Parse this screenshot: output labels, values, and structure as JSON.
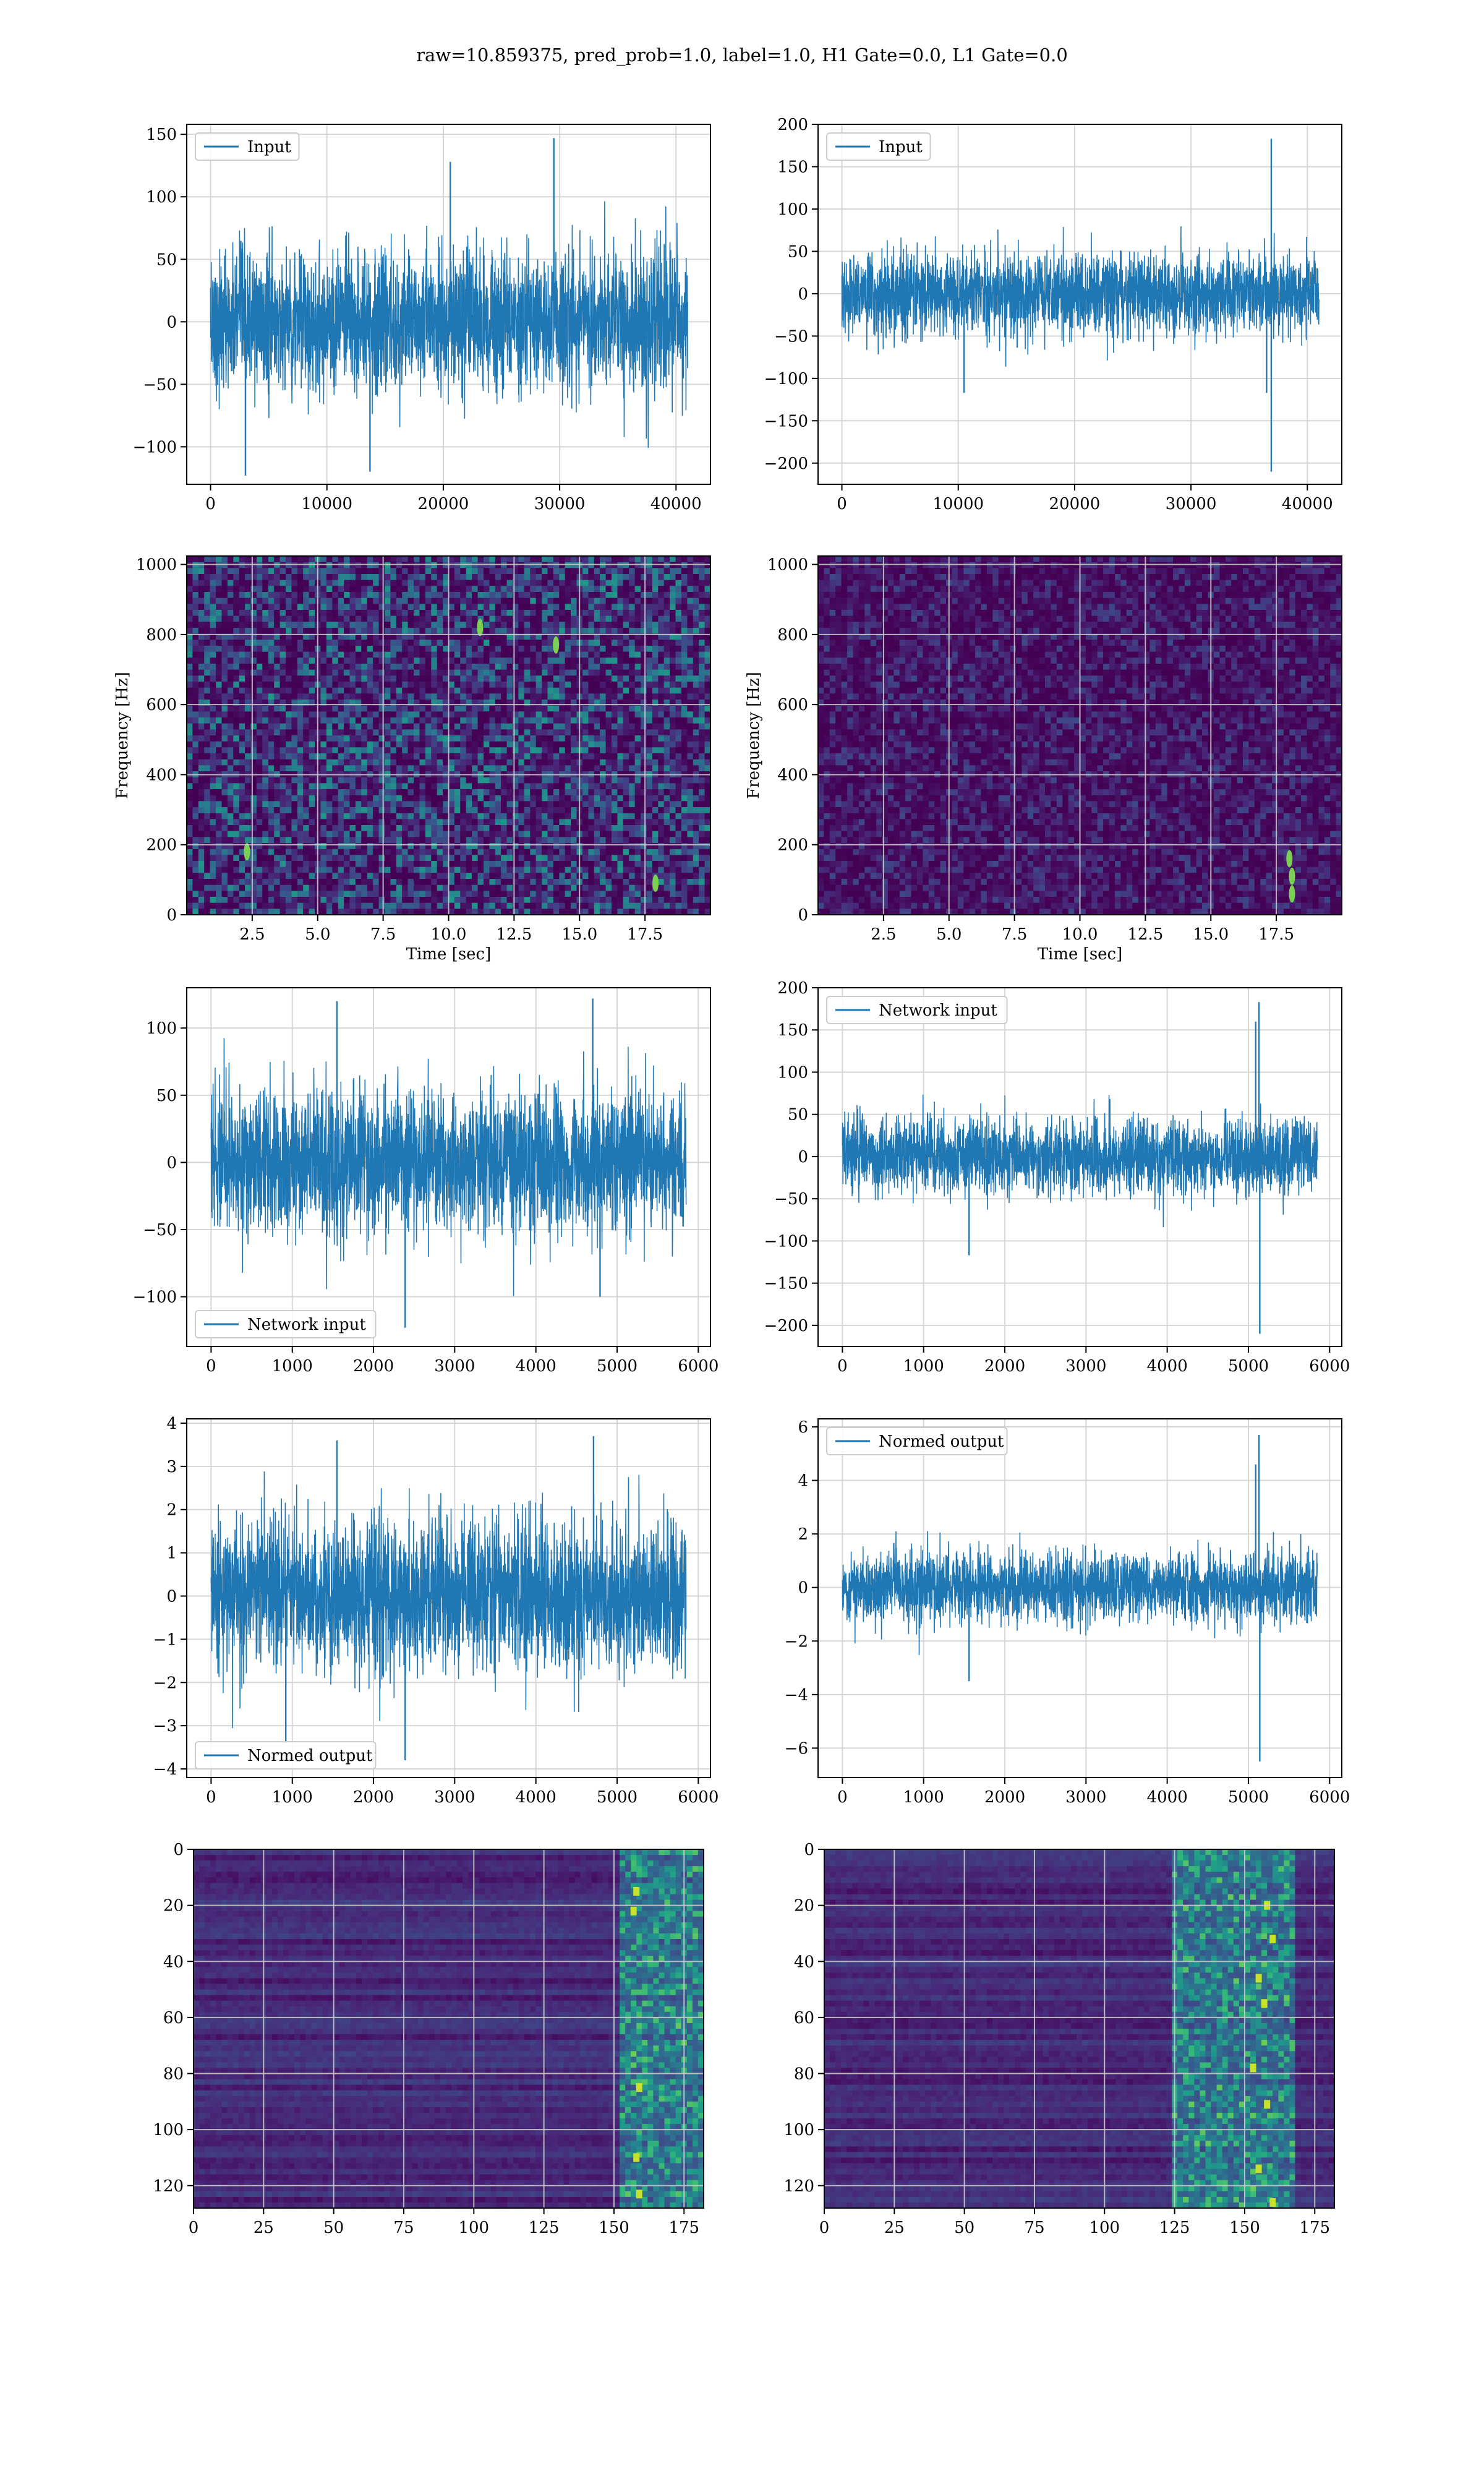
{
  "figure": {
    "title": "raw=10.859375, pred_prob=1.0, label=1.0, H1 Gate=0.0, L1 Gate=0.0"
  },
  "colors": {
    "line": "#1f77b4",
    "grid": "#d0d0d0",
    "axis": "#000000",
    "viridis_low": "#440154",
    "viridis_high": "#fde725"
  },
  "chart_data": [
    {
      "id": "h1-input",
      "type": "line",
      "legend": "Input",
      "legend_loc": "upper-left",
      "xlim": [
        -2048,
        42960
      ],
      "ylim": [
        -130,
        158
      ],
      "xticks": [
        0,
        10000,
        20000,
        30000,
        40000
      ],
      "xtick_labels": [
        "0",
        "10000",
        "20000",
        "30000",
        "40000"
      ],
      "yticks": [
        -100,
        -50,
        0,
        50,
        100,
        150
      ],
      "ytick_labels": [
        "−100",
        "−50",
        "0",
        "50",
        "100",
        "150"
      ],
      "xlabel": "",
      "ylabel": "",
      "series": [
        {
          "x": [
            0,
            41000
          ],
          "noise_sd": 28,
          "peak_max": 147,
          "peak_min": -123,
          "spikes": [
            [
              29500,
              147
            ],
            [
              3000,
              -123
            ],
            [
              13700,
              -120
            ],
            [
              20600,
              128
            ]
          ]
        }
      ]
    },
    {
      "id": "l1-input",
      "type": "line",
      "legend": "Input",
      "legend_loc": "upper-left",
      "xlim": [
        -2048,
        42960
      ],
      "ylim": [
        -225,
        200
      ],
      "xticks": [
        0,
        10000,
        20000,
        30000,
        40000
      ],
      "xtick_labels": [
        "0",
        "10000",
        "20000",
        "30000",
        "40000"
      ],
      "yticks": [
        -200,
        -150,
        -100,
        -50,
        0,
        50,
        100,
        150,
        200
      ],
      "ytick_labels": [
        "−200",
        "−150",
        "−100",
        "−50",
        "0",
        "50",
        "100",
        "150",
        "200"
      ],
      "xlabel": "",
      "ylabel": "",
      "series": [
        {
          "x": [
            0,
            41000
          ],
          "noise_sd": 24,
          "peak_max": 183,
          "peak_min": -210,
          "spikes": [
            [
              36900,
              183
            ],
            [
              36900,
              -210
            ],
            [
              36500,
              -117
            ],
            [
              10500,
              -117
            ]
          ]
        }
      ]
    },
    {
      "id": "h1-spectrogram",
      "type": "heatmap",
      "xlim": [
        0,
        20
      ],
      "ylim": [
        0,
        1024
      ],
      "xticks": [
        2.5,
        5.0,
        7.5,
        10.0,
        12.5,
        15.0,
        17.5
      ],
      "xtick_labels": [
        "2.5",
        "5.0",
        "7.5",
        "10.0",
        "12.5",
        "15.0",
        "17.5"
      ],
      "yticks": [
        0,
        200,
        400,
        600,
        800,
        1000
      ],
      "ytick_labels": [
        "0",
        "200",
        "400",
        "600",
        "800",
        "1000"
      ],
      "xlabel": "Time [sec]",
      "ylabel": "Frequency [Hz]",
      "brightness": 0.24,
      "hot_spots": [
        [
          17.9,
          90
        ],
        [
          2.3,
          180
        ],
        [
          11.2,
          820
        ],
        [
          14.1,
          770
        ]
      ]
    },
    {
      "id": "l1-spectrogram",
      "type": "heatmap",
      "xlim": [
        0,
        20
      ],
      "ylim": [
        0,
        1024
      ],
      "xticks": [
        2.5,
        5.0,
        7.5,
        10.0,
        12.5,
        15.0,
        17.5
      ],
      "xtick_labels": [
        "2.5",
        "5.0",
        "7.5",
        "10.0",
        "12.5",
        "15.0",
        "17.5"
      ],
      "yticks": [
        0,
        200,
        400,
        600,
        800,
        1000
      ],
      "ytick_labels": [
        "0",
        "200",
        "400",
        "600",
        "800",
        "1000"
      ],
      "xlabel": "Time [sec]",
      "ylabel": "Frequency [Hz]",
      "brightness": 0.1,
      "hot_spots": [
        [
          18.1,
          60
        ],
        [
          18.1,
          110
        ],
        [
          18.0,
          160
        ]
      ]
    },
    {
      "id": "h1-network-input",
      "type": "line",
      "legend": "Network input",
      "legend_loc": "lower-left",
      "xlim": [
        -300,
        6150
      ],
      "ylim": [
        -137,
        130
      ],
      "xticks": [
        0,
        1000,
        2000,
        3000,
        4000,
        5000,
        6000
      ],
      "xtick_labels": [
        "0",
        "1000",
        "2000",
        "3000",
        "4000",
        "5000",
        "6000"
      ],
      "yticks": [
        -100,
        -50,
        0,
        50,
        100
      ],
      "ytick_labels": [
        "−100",
        "−50",
        "0",
        "50",
        "100"
      ],
      "xlabel": "",
      "ylabel": "",
      "series": [
        {
          "x": [
            0,
            5850
          ],
          "noise_sd": 26,
          "peak_max": 122,
          "peak_min": -123,
          "spikes": [
            [
              1550,
              120
            ],
            [
              4700,
              122
            ],
            [
              2390,
              -123
            ],
            [
              4790,
              -100
            ]
          ]
        }
      ]
    },
    {
      "id": "l1-network-input",
      "type": "line",
      "legend": "Network input",
      "legend_loc": "upper-left",
      "xlim": [
        -300,
        6150
      ],
      "ylim": [
        -225,
        200
      ],
      "xticks": [
        0,
        1000,
        2000,
        3000,
        4000,
        5000,
        6000
      ],
      "xtick_labels": [
        "0",
        "1000",
        "2000",
        "3000",
        "4000",
        "5000",
        "6000"
      ],
      "yticks": [
        -200,
        -150,
        -100,
        -50,
        0,
        50,
        100,
        150,
        200
      ],
      "ytick_labels": [
        "−200",
        "−150",
        "−100",
        "−50",
        "0",
        "50",
        "100",
        "150",
        "200"
      ],
      "xlabel": "",
      "ylabel": "",
      "series": [
        {
          "x": [
            0,
            5850
          ],
          "noise_sd": 22,
          "peak_max": 183,
          "peak_min": -210,
          "spikes": [
            [
              5130,
              183
            ],
            [
              5140,
              -210
            ],
            [
              5090,
              160
            ],
            [
              1560,
              -117
            ]
          ]
        }
      ]
    },
    {
      "id": "h1-normed-output",
      "type": "line",
      "legend": "Normed output",
      "legend_loc": "lower-left",
      "xlim": [
        -300,
        6150
      ],
      "ylim": [
        -4.2,
        4.1
      ],
      "xticks": [
        0,
        1000,
        2000,
        3000,
        4000,
        5000,
        6000
      ],
      "xtick_labels": [
        "0",
        "1000",
        "2000",
        "3000",
        "4000",
        "5000",
        "6000"
      ],
      "yticks": [
        -4,
        -3,
        -2,
        -1,
        0,
        1,
        2,
        3,
        4
      ],
      "ytick_labels": [
        "−4",
        "−3",
        "−2",
        "−1",
        "0",
        "1",
        "2",
        "3",
        "4"
      ],
      "xlabel": "",
      "ylabel": "",
      "series": [
        {
          "x": [
            0,
            5850
          ],
          "noise_sd": 0.85,
          "peak_max": 3.7,
          "peak_min": -3.8,
          "spikes": [
            [
              4710,
              3.7
            ],
            [
              2390,
              -3.8
            ],
            [
              1550,
              3.6
            ],
            [
              920,
              -3.4
            ]
          ]
        }
      ]
    },
    {
      "id": "l1-normed-output",
      "type": "line",
      "legend": "Normed output",
      "legend_loc": "upper-left",
      "xlim": [
        -300,
        6150
      ],
      "ylim": [
        -7.1,
        6.3
      ],
      "xticks": [
        0,
        1000,
        2000,
        3000,
        4000,
        5000,
        6000
      ],
      "xtick_labels": [
        "0",
        "1000",
        "2000",
        "3000",
        "4000",
        "5000",
        "6000"
      ],
      "yticks": [
        -6,
        -4,
        -2,
        0,
        2,
        4,
        6
      ],
      "ytick_labels": [
        "−6",
        "−4",
        "−2",
        "0",
        "2",
        "4",
        "6"
      ],
      "xlabel": "",
      "ylabel": "",
      "series": [
        {
          "x": [
            0,
            5850
          ],
          "noise_sd": 0.65,
          "peak_max": 5.7,
          "peak_min": -6.5,
          "spikes": [
            [
              5130,
              5.7
            ],
            [
              5140,
              -6.5
            ],
            [
              5090,
              4.6
            ],
            [
              1560,
              -3.5
            ]
          ]
        }
      ]
    },
    {
      "id": "h1-network-image",
      "type": "heatmap",
      "xlim": [
        0,
        182
      ],
      "ylim": [
        128,
        0
      ],
      "xticks": [
        0,
        25,
        50,
        75,
        100,
        125,
        150,
        175
      ],
      "xtick_labels": [
        "0",
        "25",
        "50",
        "75",
        "100",
        "125",
        "150",
        "175"
      ],
      "yticks": [
        0,
        20,
        40,
        60,
        80,
        100,
        120
      ],
      "ytick_labels": [
        "0",
        "20",
        "40",
        "60",
        "80",
        "100",
        "120"
      ],
      "xlabel": "",
      "ylabel": "",
      "active_columns": [
        152,
        182
      ],
      "hot_spots": [
        [
          158,
          15
        ],
        [
          157,
          22
        ],
        [
          159,
          85
        ],
        [
          158,
          110
        ],
        [
          159,
          123
        ]
      ]
    },
    {
      "id": "l1-network-image",
      "type": "heatmap",
      "xlim": [
        0,
        182
      ],
      "ylim": [
        128,
        0
      ],
      "xticks": [
        0,
        25,
        50,
        75,
        100,
        125,
        150,
        175
      ],
      "xtick_labels": [
        "0",
        "25",
        "50",
        "75",
        "100",
        "125",
        "150",
        "175"
      ],
      "yticks": [
        0,
        20,
        40,
        60,
        80,
        100,
        120
      ],
      "ytick_labels": [
        "0",
        "20",
        "40",
        "60",
        "80",
        "100",
        "120"
      ],
      "xlabel": "",
      "ylabel": "",
      "active_columns": [
        125,
        168
      ],
      "hot_spots": [
        [
          158,
          20
        ],
        [
          160,
          32
        ],
        [
          155,
          46
        ],
        [
          157,
          55
        ],
        [
          153,
          78
        ],
        [
          158,
          91
        ],
        [
          155,
          114
        ],
        [
          160,
          126
        ]
      ]
    }
  ]
}
